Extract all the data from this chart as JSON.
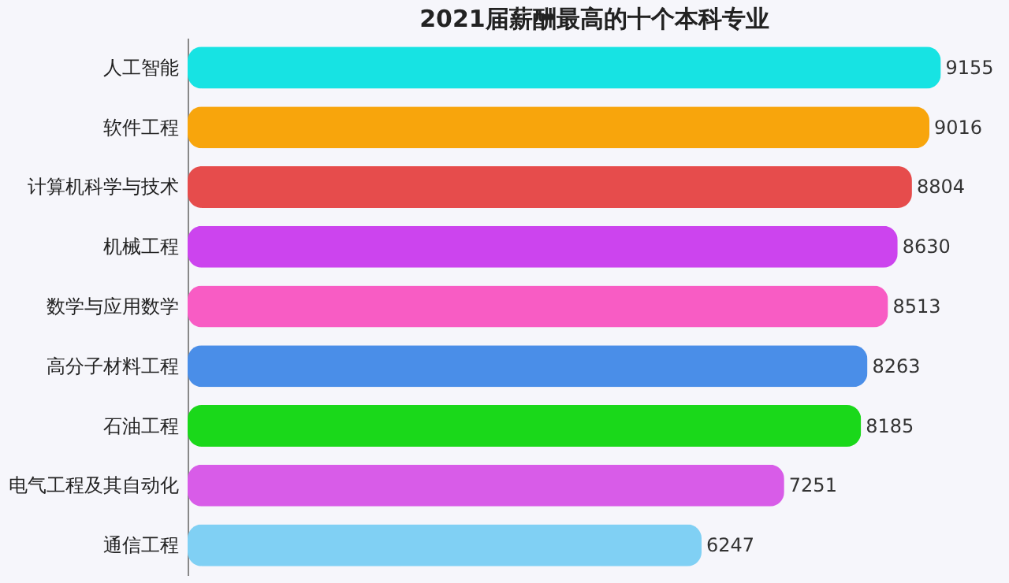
{
  "chart_data": {
    "type": "bar",
    "orientation": "horizontal",
    "title": "2021届薪酬最高的十个本科专业",
    "categories": [
      "人工智能",
      "软件工程",
      "计算机科学与技术",
      "机械工程",
      "数学与应用数学",
      "高分子材料工程",
      "石油工程",
      "电气工程及其自动化",
      "通信工程"
    ],
    "values": [
      9155,
      9016,
      8804,
      8630,
      8513,
      8263,
      8185,
      7251,
      6247
    ],
    "colors": [
      "#17e3e3",
      "#f8a50c",
      "#e64c4c",
      "#cc44ee",
      "#f85cc4",
      "#4a8ee8",
      "#1ad81a",
      "#d85ce8",
      "#80d0f4"
    ],
    "data_labels": true
  }
}
